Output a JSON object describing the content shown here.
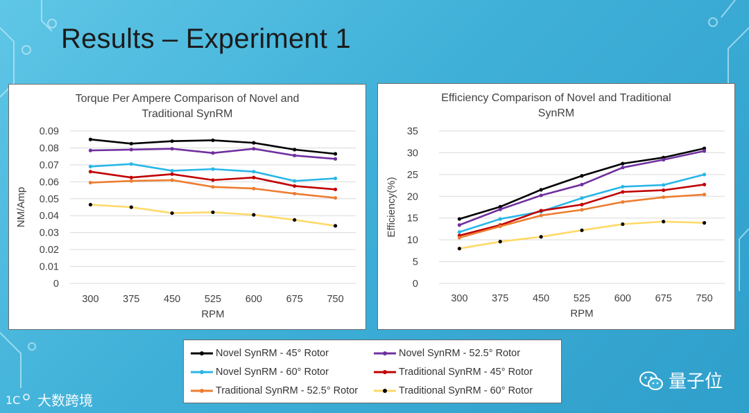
{
  "slide": {
    "title": "Results – Experiment 1"
  },
  "watermarks": {
    "left_text": "大数跨境",
    "left_icon": "logo-icon",
    "right_text": "量子位",
    "right_icon": "wechat-icon"
  },
  "colors": {
    "background": "#3fb0d8",
    "novel_45": "#000000",
    "novel_52_5": "#7030a0",
    "novel_60": "#29b6e8",
    "trad_45": "#c00000",
    "trad_52_5": "#ed7d31",
    "trad_60": "#ffd966"
  },
  "legend": [
    {
      "name": "Novel SynRM - 45° Rotor",
      "color": "#000000"
    },
    {
      "name": "Novel SynRM - 52.5° Rotor",
      "color": "#7030a0"
    },
    {
      "name": "Novel SynRM - 60° Rotor",
      "color": "#29b6e8"
    },
    {
      "name": "Traditional SynRM - 45° Rotor",
      "color": "#c00000"
    },
    {
      "name": "Traditional SynRM - 52.5° Rotor",
      "color": "#ed7d31"
    },
    {
      "name": "Traditional SynRM - 60° Rotor",
      "color": "#ffd966"
    }
  ],
  "chart_data": [
    {
      "type": "line",
      "title_lines": [
        "Torque Per Ampere  Comparison of Novel and",
        "Traditional SynRM"
      ],
      "xlabel": "RPM",
      "ylabel": "NM/Amp",
      "x": [
        "300",
        "375",
        "450",
        "525",
        "600",
        "675",
        "750"
      ],
      "ylim": [
        0,
        0.09
      ],
      "yticks": [
        "0",
        "0.01",
        "0.02",
        "0.03",
        "0.04",
        "0.05",
        "0.06",
        "0.07",
        "0.08",
        "0.09"
      ],
      "ytick_values": [
        0,
        0.01,
        0.02,
        0.03,
        0.04,
        0.05,
        0.06,
        0.07,
        0.08,
        0.09
      ],
      "grid": true,
      "series": [
        {
          "name": "Novel SynRM - 45° Rotor",
          "values": [
            0.085,
            0.0825,
            0.084,
            0.0845,
            0.083,
            0.079,
            0.0765
          ]
        },
        {
          "name": "Novel SynRM - 52.5° Rotor",
          "values": [
            0.0785,
            0.079,
            0.0795,
            0.077,
            0.0795,
            0.0755,
            0.0735
          ]
        },
        {
          "name": "Novel SynRM - 60° Rotor",
          "values": [
            0.069,
            0.0705,
            0.0665,
            0.0675,
            0.066,
            0.0605,
            0.062
          ]
        },
        {
          "name": "Traditional SynRM - 45° Rotor",
          "values": [
            0.066,
            0.0625,
            0.0645,
            0.061,
            0.0625,
            0.0575,
            0.0555
          ]
        },
        {
          "name": "Traditional SynRM - 52.5° Rotor",
          "values": [
            0.0595,
            0.0605,
            0.061,
            0.057,
            0.056,
            0.053,
            0.0505
          ]
        },
        {
          "name": "Traditional SynRM - 60° Rotor",
          "values": [
            0.0465,
            0.045,
            0.0415,
            0.042,
            0.0405,
            0.0375,
            0.034
          ]
        }
      ]
    },
    {
      "type": "line",
      "title_lines": [
        "Efficiency Comparison  of Novel and Traditional",
        "SynRM"
      ],
      "xlabel": "RPM",
      "ylabel": "Efficiency(%)",
      "x": [
        "300",
        "375",
        "450",
        "525",
        "600",
        "675",
        "750"
      ],
      "ylim": [
        0,
        35
      ],
      "yticks": [
        "0",
        "5",
        "10",
        "15",
        "20",
        "25",
        "30",
        "35"
      ],
      "ytick_values": [
        0,
        5,
        10,
        15,
        20,
        25,
        30,
        35
      ],
      "grid": true,
      "series": [
        {
          "name": "Novel SynRM - 45° Rotor",
          "values": [
            14.8,
            17.6,
            21.5,
            24.7,
            27.5,
            28.9,
            31
          ]
        },
        {
          "name": "Novel SynRM - 52.5° Rotor",
          "values": [
            13.4,
            17,
            20.2,
            22.7,
            26.6,
            28.4,
            30.4
          ]
        },
        {
          "name": "Novel SynRM - 60° Rotor",
          "values": [
            11.8,
            14.8,
            16.5,
            19.6,
            22.2,
            22.6,
            25
          ]
        },
        {
          "name": "Traditional SynRM - 45° Rotor",
          "values": [
            11,
            13.4,
            16.7,
            18.1,
            21,
            21.4,
            22.7
          ]
        },
        {
          "name": "Traditional SynRM - 52.5° Rotor",
          "values": [
            10.5,
            13.1,
            15.6,
            16.9,
            18.7,
            19.8,
            20.4
          ]
        },
        {
          "name": "Traditional SynRM - 60° Rotor",
          "values": [
            8,
            9.6,
            10.7,
            12.2,
            13.6,
            14.2,
            13.9
          ]
        }
      ]
    }
  ]
}
